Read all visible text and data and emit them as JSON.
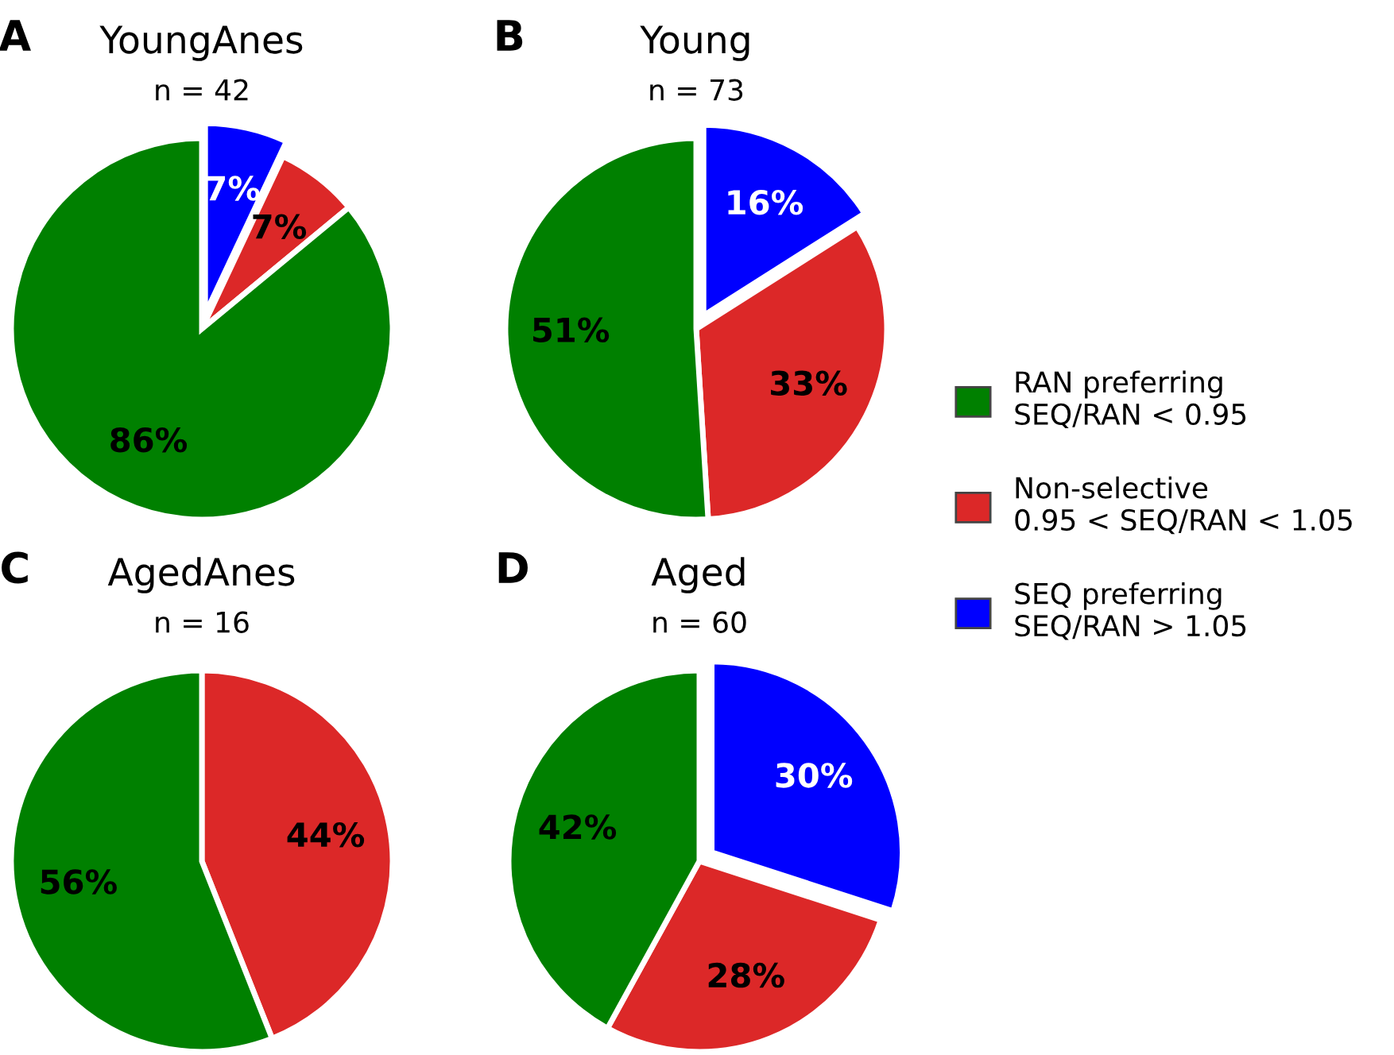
{
  "chart_data": [
    {
      "type": "pie",
      "title": "YoungAnes",
      "subtitle": "n = 42",
      "annotations": [
        "A"
      ],
      "categories": [
        null,
        null,
        null
      ],
      "values": [
        7,
        7,
        86
      ],
      "value_labels": [
        "7%",
        "7%",
        "86%"
      ],
      "colors": [
        "#0000ff",
        "#dc2828",
        "#008000"
      ]
    },
    {
      "type": "pie",
      "title": "Young",
      "subtitle": "n = 73",
      "annotations": [
        "B"
      ],
      "categories": [
        "SEQ preferring\nSEQ/RAN > 1.05",
        "Non-selective\n0.95 < SEQ/RAN < 1.05",
        "RAN preferring\nSEQ/RAN < 0.95"
      ],
      "values": [
        16,
        33,
        51
      ],
      "value_labels": [
        "16%",
        "33%",
        "51%"
      ],
      "colors": [
        "#0000ff",
        "#dc2828",
        "#008000"
      ],
      "legend": "right"
    },
    {
      "type": "pie",
      "title": "AgedAnes",
      "subtitle": "n = 16",
      "annotations": [
        "C"
      ],
      "categories": [
        null,
        null
      ],
      "values": [
        44,
        56
      ],
      "value_labels": [
        "44%",
        "56%"
      ],
      "colors": [
        "#dc2828",
        "#008000"
      ]
    },
    {
      "type": "pie",
      "title": "Aged",
      "subtitle": "n = 60",
      "annotations": [
        "D"
      ],
      "categories": [
        null,
        null,
        null
      ],
      "values": [
        30,
        28,
        42
      ],
      "value_labels": [
        "30%",
        "28%",
        "42%"
      ],
      "colors": [
        "#0000ff",
        "#dc2828",
        "#008000"
      ]
    }
  ]
}
